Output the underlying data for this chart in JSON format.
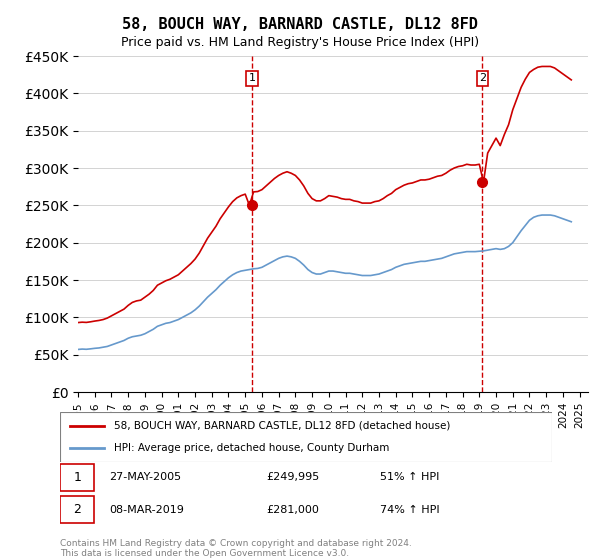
{
  "title": "58, BOUCH WAY, BARNARD CASTLE, DL12 8FD",
  "subtitle": "Price paid vs. HM Land Registry's House Price Index (HPI)",
  "ylabel_ticks": [
    "£0",
    "£50K",
    "£100K",
    "£150K",
    "£200K",
    "£250K",
    "£300K",
    "£350K",
    "£400K",
    "£450K"
  ],
  "ylim": [
    0,
    450000
  ],
  "xlim_start": 1995.0,
  "xlim_end": 2025.5,
  "legend_line1": "58, BOUCH WAY, BARNARD CASTLE, DL12 8FD (detached house)",
  "legend_line2": "HPI: Average price, detached house, County Durham",
  "sale1_label": "1",
  "sale1_date": "27-MAY-2005",
  "sale1_price": "£249,995",
  "sale1_hpi": "51% ↑ HPI",
  "sale1_x": 2005.4,
  "sale1_y": 249995,
  "sale2_label": "2",
  "sale2_date": "08-MAR-2019",
  "sale2_price": "£281,000",
  "sale2_hpi": "74% ↑ HPI",
  "sale2_x": 2019.18,
  "sale2_y": 281000,
  "footer": "Contains HM Land Registry data © Crown copyright and database right 2024.\nThis data is licensed under the Open Government Licence v3.0.",
  "red_color": "#cc0000",
  "blue_color": "#6699cc",
  "hpi_x": [
    1995.0,
    1995.25,
    1995.5,
    1995.75,
    1996.0,
    1996.25,
    1996.5,
    1996.75,
    1997.0,
    1997.25,
    1997.5,
    1997.75,
    1998.0,
    1998.25,
    1998.5,
    1998.75,
    1999.0,
    1999.25,
    1999.5,
    1999.75,
    2000.0,
    2000.25,
    2000.5,
    2000.75,
    2001.0,
    2001.25,
    2001.5,
    2001.75,
    2002.0,
    2002.25,
    2002.5,
    2002.75,
    2003.0,
    2003.25,
    2003.5,
    2003.75,
    2004.0,
    2004.25,
    2004.5,
    2004.75,
    2005.0,
    2005.25,
    2005.5,
    2005.75,
    2006.0,
    2006.25,
    2006.5,
    2006.75,
    2007.0,
    2007.25,
    2007.5,
    2007.75,
    2008.0,
    2008.25,
    2008.5,
    2008.75,
    2009.0,
    2009.25,
    2009.5,
    2009.75,
    2010.0,
    2010.25,
    2010.5,
    2010.75,
    2011.0,
    2011.25,
    2011.5,
    2011.75,
    2012.0,
    2012.25,
    2012.5,
    2012.75,
    2013.0,
    2013.25,
    2013.5,
    2013.75,
    2014.0,
    2014.25,
    2014.5,
    2014.75,
    2015.0,
    2015.25,
    2015.5,
    2015.75,
    2016.0,
    2016.25,
    2016.5,
    2016.75,
    2017.0,
    2017.25,
    2017.5,
    2017.75,
    2018.0,
    2018.25,
    2018.5,
    2018.75,
    2019.0,
    2019.25,
    2019.5,
    2019.75,
    2020.0,
    2020.25,
    2020.5,
    2020.75,
    2021.0,
    2021.25,
    2021.5,
    2021.75,
    2022.0,
    2022.25,
    2022.5,
    2022.75,
    2023.0,
    2023.25,
    2023.5,
    2023.75,
    2024.0,
    2024.25,
    2024.5
  ],
  "hpi_y": [
    57000,
    57500,
    57200,
    57800,
    58500,
    59000,
    60000,
    61000,
    63000,
    65000,
    67000,
    69000,
    72000,
    74000,
    75000,
    76000,
    78000,
    81000,
    84000,
    88000,
    90000,
    92000,
    93000,
    95000,
    97000,
    100000,
    103000,
    106000,
    110000,
    115000,
    121000,
    127000,
    132000,
    137000,
    143000,
    148000,
    153000,
    157000,
    160000,
    162000,
    163000,
    164000,
    165000,
    165500,
    167000,
    170000,
    173000,
    176000,
    179000,
    181000,
    182000,
    181000,
    179000,
    175000,
    170000,
    164000,
    160000,
    158000,
    158000,
    160000,
    162000,
    162000,
    161000,
    160000,
    159000,
    159000,
    158000,
    157000,
    156000,
    156000,
    156000,
    157000,
    158000,
    160000,
    162000,
    164000,
    167000,
    169000,
    171000,
    172000,
    173000,
    174000,
    175000,
    175000,
    176000,
    177000,
    178000,
    179000,
    181000,
    183000,
    185000,
    186000,
    187000,
    188000,
    188000,
    188000,
    188500,
    189000,
    190000,
    191000,
    192000,
    191000,
    192000,
    195000,
    200000,
    208000,
    216000,
    223000,
    230000,
    234000,
    236000,
    237000,
    237000,
    237000,
    236000,
    234000,
    232000,
    230000,
    228000
  ],
  "prop_x": [
    1995.0,
    1995.25,
    1995.5,
    1995.75,
    1996.0,
    1996.25,
    1996.5,
    1996.75,
    1997.0,
    1997.25,
    1997.5,
    1997.75,
    1998.0,
    1998.25,
    1998.5,
    1998.75,
    1999.0,
    1999.25,
    1999.5,
    1999.75,
    2000.0,
    2000.25,
    2000.5,
    2000.75,
    2001.0,
    2001.25,
    2001.5,
    2001.75,
    2002.0,
    2002.25,
    2002.5,
    2002.75,
    2003.0,
    2003.25,
    2003.5,
    2003.75,
    2004.0,
    2004.25,
    2004.5,
    2004.75,
    2005.0,
    2005.25,
    2005.5,
    2005.75,
    2006.0,
    2006.25,
    2006.5,
    2006.75,
    2007.0,
    2007.25,
    2007.5,
    2007.75,
    2008.0,
    2008.25,
    2008.5,
    2008.75,
    2009.0,
    2009.25,
    2009.5,
    2009.75,
    2010.0,
    2010.25,
    2010.5,
    2010.75,
    2011.0,
    2011.25,
    2011.5,
    2011.75,
    2012.0,
    2012.25,
    2012.5,
    2012.75,
    2013.0,
    2013.25,
    2013.5,
    2013.75,
    2014.0,
    2014.25,
    2014.5,
    2014.75,
    2015.0,
    2015.25,
    2015.5,
    2015.75,
    2016.0,
    2016.25,
    2016.5,
    2016.75,
    2017.0,
    2017.25,
    2017.5,
    2017.75,
    2018.0,
    2018.25,
    2018.5,
    2018.75,
    2019.0,
    2019.25,
    2019.5,
    2019.75,
    2020.0,
    2020.25,
    2020.5,
    2020.75,
    2021.0,
    2021.25,
    2021.5,
    2021.75,
    2022.0,
    2022.25,
    2022.5,
    2022.75,
    2023.0,
    2023.25,
    2023.5,
    2023.75,
    2024.0,
    2024.25,
    2024.5
  ],
  "prop_y": [
    93000,
    93500,
    93200,
    94000,
    95000,
    95800,
    97000,
    99000,
    102000,
    105000,
    108000,
    111000,
    116000,
    120000,
    122000,
    123000,
    127000,
    131000,
    136000,
    143000,
    146000,
    149000,
    151000,
    154000,
    157000,
    162000,
    167000,
    172000,
    178000,
    186000,
    196000,
    206000,
    214000,
    222000,
    232000,
    240000,
    248000,
    255000,
    260000,
    263000,
    265000,
    249995,
    268000,
    268500,
    271000,
    276000,
    281000,
    286000,
    290000,
    293000,
    295000,
    293000,
    290000,
    284000,
    276000,
    266000,
    259000,
    256000,
    256000,
    259000,
    263000,
    262000,
    261000,
    259000,
    258000,
    258000,
    256000,
    255000,
    253000,
    253000,
    253000,
    255000,
    256000,
    259000,
    263000,
    266000,
    271000,
    274000,
    277000,
    279000,
    280000,
    282000,
    284000,
    284000,
    285000,
    287000,
    289000,
    290000,
    293000,
    297000,
    300000,
    302000,
    303000,
    305000,
    304000,
    304000,
    305000,
    281000,
    320000,
    330000,
    340000,
    330000,
    345000,
    358000,
    378000,
    393000,
    408000,
    419000,
    428000,
    432000,
    435000,
    436000,
    436000,
    436000,
    434000,
    430000,
    426000,
    422000,
    418000
  ]
}
